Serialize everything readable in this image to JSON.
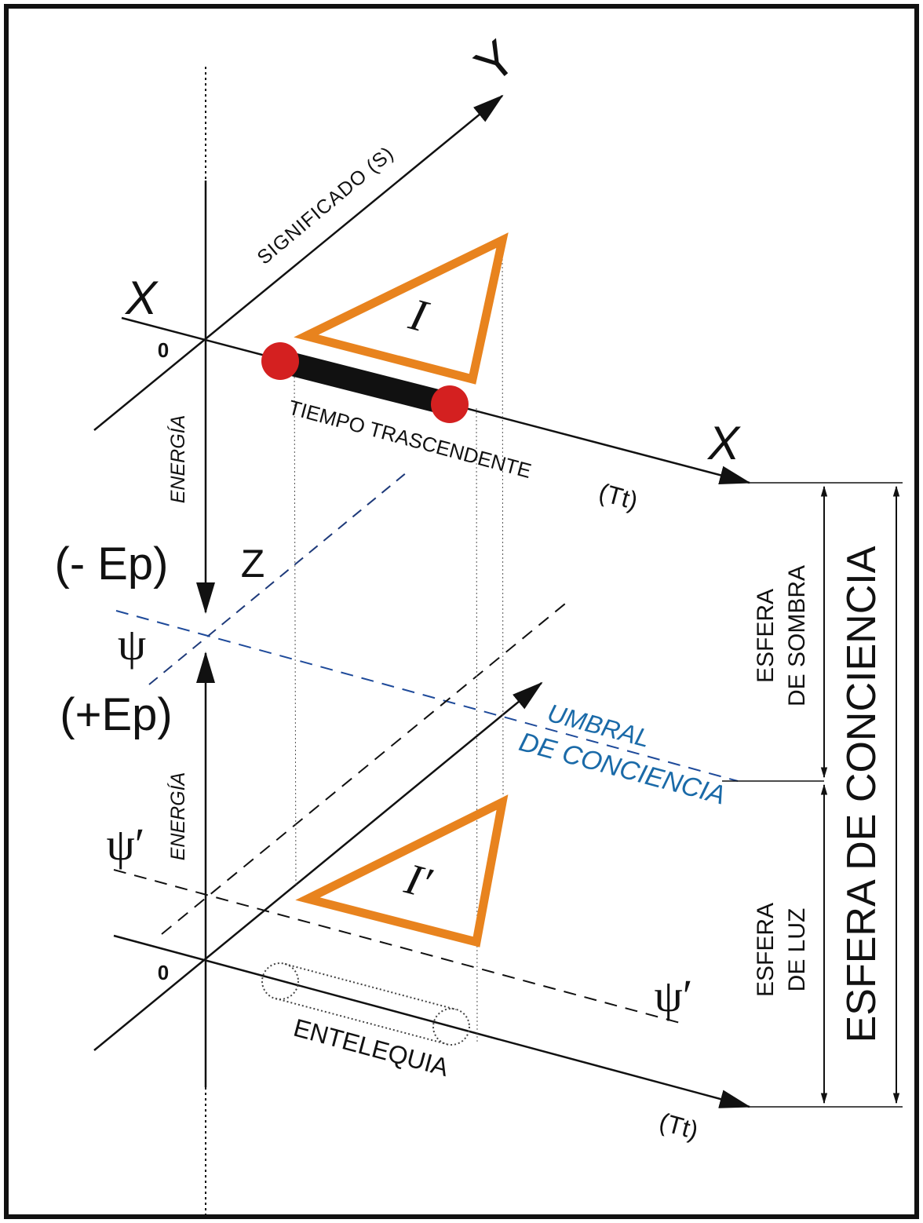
{
  "labels": {
    "axis_y": "Y",
    "axis_x_left": "X",
    "axis_x_right": "X",
    "origin_top": "0",
    "origin_bottom": "0",
    "significado": "SIGNIFICADO (S)",
    "energia_top": "ENERGÍA",
    "energia_bottom": "ENERGÍA",
    "tiempo_trascendente": "TIEMPO TRASCENDENTE",
    "tt_top": "(Tt)",
    "tt_bottom": "(Tt)",
    "minus_ep": "(- Ep)",
    "plus_ep": "(+Ep)",
    "z": "Z",
    "psi": "ψ",
    "psi_prime_left": "ψ′",
    "psi_prime_right": "ψ′",
    "umbral_line1": "UMBRAL",
    "umbral_line2": "DE CONCIENCIA",
    "triangle_top": "I",
    "triangle_bottom": "I′",
    "entelequia": "ENTELEQUIA",
    "esfera_sombra_line1": "ESFERA",
    "esfera_sombra_line2": "DE SOMBRA",
    "esfera_luz_line1": "ESFERA",
    "esfera_luz_line2": "DE LUZ",
    "esfera_conciencia": "ESFERA DE CONCIENCIA"
  },
  "colors": {
    "ink": "#111111",
    "triangle": "#e8831e",
    "dot": "#d42020",
    "threshold": "#1e4a9a",
    "umbral_text": "#1a6aa8"
  }
}
